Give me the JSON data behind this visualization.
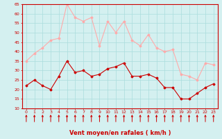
{
  "hours": [
    0,
    1,
    2,
    3,
    4,
    5,
    6,
    7,
    8,
    9,
    10,
    11,
    12,
    13,
    14,
    15,
    16,
    17,
    18,
    19,
    20,
    21,
    22,
    23
  ],
  "wind_avg": [
    22,
    25,
    22,
    20,
    27,
    35,
    29,
    30,
    27,
    28,
    31,
    32,
    34,
    27,
    27,
    28,
    26,
    21,
    21,
    15,
    15,
    18,
    21,
    23
  ],
  "wind_gust": [
    35,
    39,
    42,
    46,
    47,
    65,
    58,
    56,
    58,
    43,
    56,
    50,
    56,
    46,
    43,
    49,
    42,
    40,
    41,
    28,
    27,
    25,
    34,
    33
  ],
  "avg_color": "#cc0000",
  "gust_color": "#ffaaaa",
  "bg_color": "#d4f0f0",
  "grid_color": "#aadddd",
  "xlabel": "Vent moyen/en rafales ( km/h )",
  "xlabel_color": "#cc0000",
  "ylim": [
    10,
    65
  ],
  "yticks": [
    10,
    15,
    20,
    25,
    30,
    35,
    40,
    45,
    50,
    55,
    60,
    65
  ],
  "marker": "D",
  "marker_size": 1.5,
  "line_width": 0.8
}
